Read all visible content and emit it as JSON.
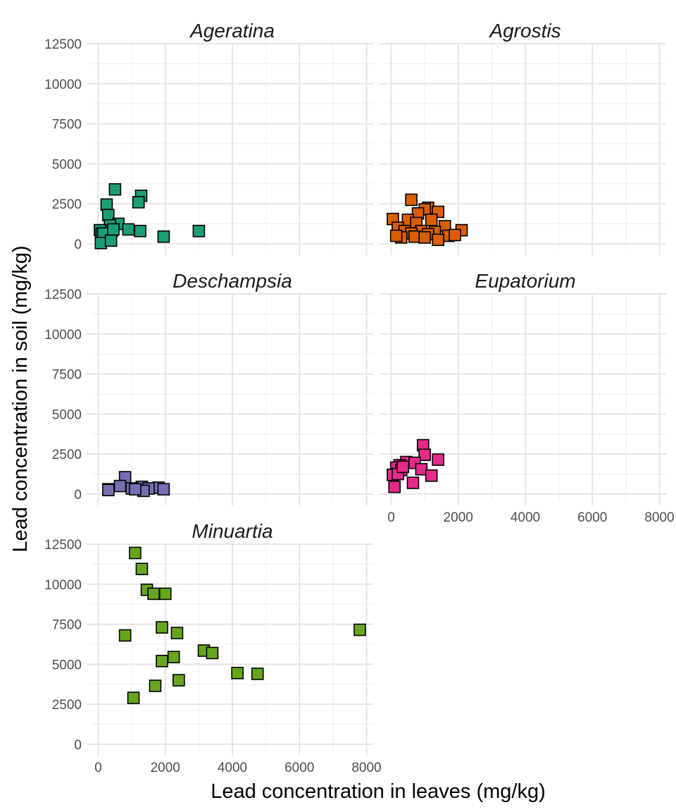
{
  "chart_data": {
    "type": "scatter",
    "marker": "square",
    "xlabel": "Lead concentration in leaves (mg/kg)",
    "ylabel": "Lead concentration in soil (mg/kg)",
    "xlim": [
      -200,
      8200
    ],
    "ylim": [
      -400,
      12500
    ],
    "x_ticks": [
      0,
      2000,
      4000,
      6000,
      8000
    ],
    "y_ticks": [
      0,
      2500,
      5000,
      7500,
      10000,
      12500
    ],
    "x_tick_labels": [
      "0",
      "2000",
      "4000",
      "6000",
      "8000"
    ],
    "y_tick_labels": [
      "0",
      "2500",
      "5000",
      "7500",
      "10000",
      "12500"
    ],
    "grid": true,
    "legend": "none",
    "facets": [
      {
        "name": "Ageratina",
        "color": "#1b9e77",
        "points": [
          [
            500,
            3400
          ],
          [
            1280,
            3000
          ],
          [
            1200,
            2600
          ],
          [
            250,
            2450
          ],
          [
            300,
            1800
          ],
          [
            600,
            1250
          ],
          [
            350,
            1150
          ],
          [
            50,
            850
          ],
          [
            400,
            800
          ],
          [
            900,
            900
          ],
          [
            1250,
            800
          ],
          [
            3000,
            800
          ],
          [
            1950,
            450
          ],
          [
            100,
            600
          ],
          [
            150,
            650
          ],
          [
            80,
            50
          ],
          [
            380,
            200
          ],
          [
            450,
            900
          ]
        ]
      },
      {
        "name": "Agrostis",
        "color": "#d95f02",
        "points": [
          [
            600,
            2750
          ],
          [
            1100,
            2250
          ],
          [
            1000,
            2150
          ],
          [
            1400,
            2000
          ],
          [
            800,
            1900
          ],
          [
            50,
            1550
          ],
          [
            500,
            1500
          ],
          [
            1200,
            1500
          ],
          [
            750,
            1300
          ],
          [
            1600,
            1100
          ],
          [
            200,
            1000
          ],
          [
            2100,
            850
          ],
          [
            400,
            800
          ],
          [
            900,
            800
          ],
          [
            1300,
            750
          ],
          [
            600,
            650
          ],
          [
            1100,
            600
          ],
          [
            1700,
            500
          ],
          [
            1900,
            550
          ],
          [
            300,
            400
          ],
          [
            700,
            450
          ],
          [
            1000,
            400
          ],
          [
            1400,
            250
          ],
          [
            150,
            500
          ]
        ]
      },
      {
        "name": "Deschampsia",
        "color": "#7570b3",
        "points": [
          [
            800,
            1050
          ],
          [
            650,
            500
          ],
          [
            1300,
            450
          ],
          [
            300,
            300
          ],
          [
            1000,
            350
          ],
          [
            1800,
            400
          ],
          [
            1500,
            350
          ],
          [
            1950,
            300
          ],
          [
            1350,
            200
          ],
          [
            300,
            250
          ],
          [
            1100,
            300
          ]
        ]
      },
      {
        "name": "Eupatorium",
        "color": "#e7298a",
        "points": [
          [
            950,
            3050
          ],
          [
            1000,
            2450
          ],
          [
            1400,
            2150
          ],
          [
            450,
            2000
          ],
          [
            700,
            1950
          ],
          [
            250,
            1800
          ],
          [
            150,
            1650
          ],
          [
            300,
            1500
          ],
          [
            900,
            1550
          ],
          [
            1200,
            1150
          ],
          [
            50,
            1200
          ],
          [
            200,
            1250
          ],
          [
            650,
            700
          ],
          [
            100,
            450
          ],
          [
            350,
            1700
          ]
        ]
      },
      {
        "name": "Minuartia",
        "color": "#66a61e",
        "points": [
          [
            1100,
            11950
          ],
          [
            1300,
            10950
          ],
          [
            1450,
            9650
          ],
          [
            1650,
            9400
          ],
          [
            2000,
            9400
          ],
          [
            1900,
            7300
          ],
          [
            7800,
            7150
          ],
          [
            800,
            6800
          ],
          [
            2350,
            6950
          ],
          [
            3150,
            5850
          ],
          [
            3400,
            5700
          ],
          [
            2250,
            5450
          ],
          [
            1900,
            5200
          ],
          [
            4150,
            4450
          ],
          [
            4750,
            4400
          ],
          [
            2400,
            4000
          ],
          [
            1700,
            3650
          ],
          [
            1050,
            2900
          ]
        ]
      }
    ]
  }
}
